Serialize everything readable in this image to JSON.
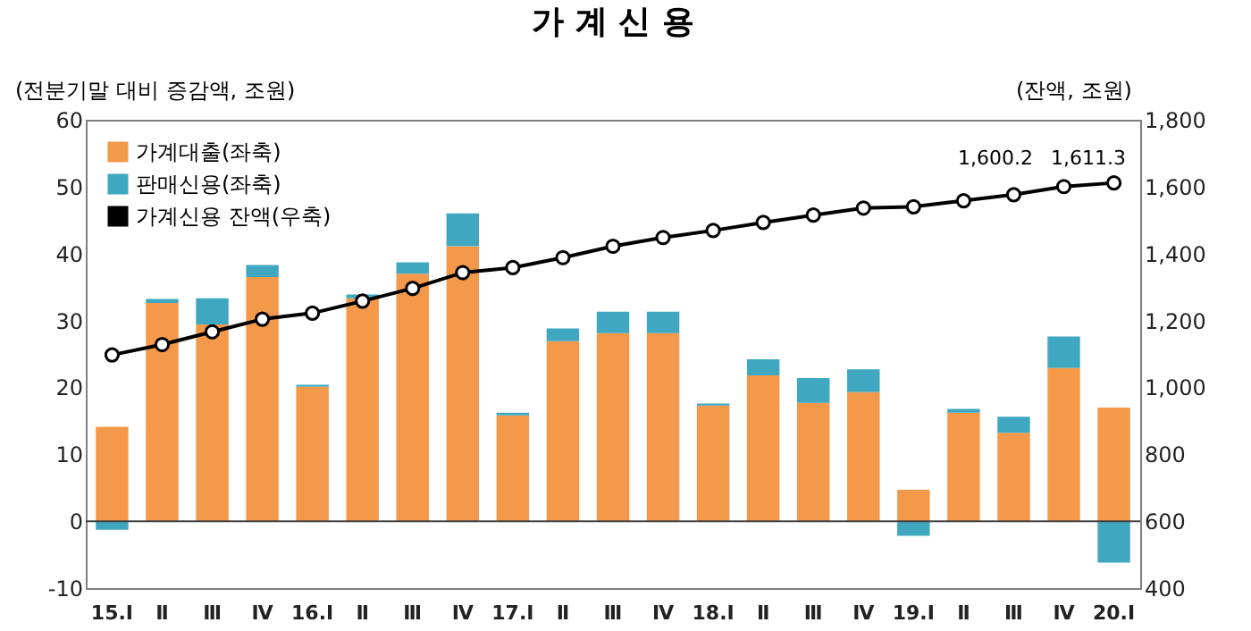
{
  "chart_data": {
    "type": "bar",
    "title": "가 계 신 용",
    "ylabel": "(전분기말 대비 증감액, 조원)",
    "y2label": "(잔액, 조원)",
    "categories": [
      "15.Ⅰ",
      "Ⅱ",
      "Ⅲ",
      "Ⅳ",
      "16.Ⅰ",
      "Ⅱ",
      "Ⅲ",
      "Ⅳ",
      "17.Ⅰ",
      "Ⅱ",
      "Ⅲ",
      "Ⅳ",
      "18.Ⅰ",
      "Ⅱ",
      "Ⅲ",
      "Ⅳ",
      "19.Ⅰ",
      "Ⅱ",
      "Ⅲ",
      "Ⅳ",
      "20.Ⅰ"
    ],
    "stacked": true,
    "series": [
      {
        "name": "가계대출(좌축)",
        "color": "#f4994a",
        "values": [
          14.1,
          32.6,
          29.4,
          36.5,
          20.1,
          33.3,
          37.0,
          41.1,
          15.8,
          26.9,
          28.1,
          28.1,
          17.3,
          21.8,
          17.7,
          19.3,
          4.7,
          16.2,
          13.2,
          22.9,
          17.0
        ]
      },
      {
        "name": "판매신용(좌축)",
        "color": "#3fa8c0",
        "values": [
          -1.3,
          0.6,
          3.9,
          1.8,
          0.3,
          0.6,
          1.7,
          4.9,
          0.4,
          1.9,
          3.2,
          3.2,
          0.3,
          2.4,
          3.7,
          3.4,
          -2.2,
          0.6,
          2.4,
          4.7,
          -6.2
        ]
      },
      {
        "name": "가계신용 잔액(우축)",
        "type": "line",
        "axis": "y2",
        "color": "#000000",
        "values": [
          1097,
          1128,
          1166,
          1204,
          1222,
          1258,
          1296,
          1343,
          1358,
          1388,
          1422,
          1448,
          1469,
          1493,
          1515,
          1536,
          1540,
          1558,
          1576,
          1600.2,
          1611.3
        ]
      }
    ],
    "ylim": [
      -10,
      60
    ],
    "yticks": [
      -10,
      0,
      10,
      20,
      30,
      40,
      50,
      60
    ],
    "y2lim": [
      400,
      1800
    ],
    "y2ticks": [
      400,
      600,
      800,
      {
        "value": 1000,
        "label": "1,000"
      },
      {
        "value": 1200,
        "label": "1,200"
      },
      {
        "value": 1400,
        "label": "1,400"
      },
      {
        "value": 1600,
        "label": "1,600"
      },
      {
        "value": 1800,
        "label": "1,800"
      }
    ],
    "ref_lines": [
      {
        "axis": "y",
        "value": 0,
        "color": "#404040"
      }
    ],
    "annotations": [
      "1,600.2",
      "1,611.3"
    ],
    "grid": false,
    "legend": "top left",
    "marker": "circle",
    "line_style": "solid"
  }
}
